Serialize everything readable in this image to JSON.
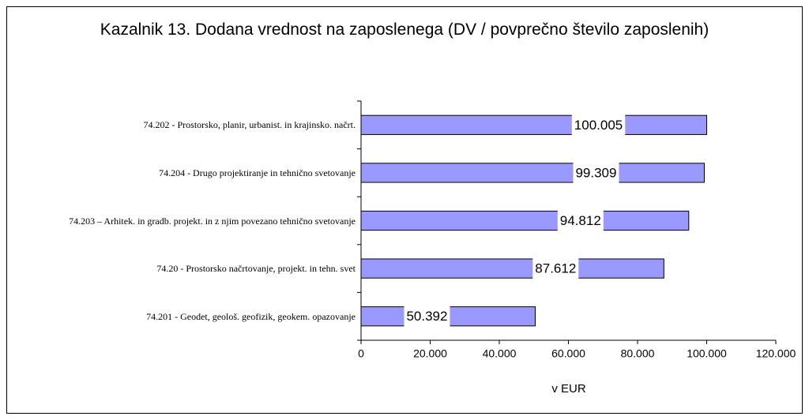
{
  "chart_data": {
    "type": "bar",
    "orientation": "horizontal",
    "title": "Kazalnik 13. Dodana vrednost na zaposlenega (DV / povprečno število zaposlenih)",
    "categories": [
      "74.202 - Prostorsko, planir, urbanist. in krajinsko. načrt.",
      "74.204 - Drugo projektiranje in tehnično svetovanje",
      "74.203 – Arhitek. in gradb. projekt. in z njim povezano tehnično svetovanje",
      "74.20 - Prostorsko načrtovanje, projekt. in tehn. svet",
      "74.201 - Geodet, geološ. geofizik, geokem. opazovanje"
    ],
    "values": [
      100005,
      99309,
      94812,
      87612,
      50392
    ],
    "value_labels": [
      "100.005",
      "99.309",
      "94.812",
      "87.612",
      "50.392"
    ],
    "color": "#9999ff",
    "xlabel": "v EUR",
    "xlim": [
      0,
      120000
    ],
    "xticks": [
      0,
      {
        "value": 20000,
        "label": "20.000"
      },
      {
        "value": 40000,
        "label": "40.000"
      },
      {
        "value": 60000,
        "label": "60.000"
      },
      {
        "value": 80000,
        "label": "80.000"
      },
      {
        "value": 100000,
        "label": "100.000"
      },
      {
        "value": 120000,
        "label": "120.000"
      }
    ]
  }
}
